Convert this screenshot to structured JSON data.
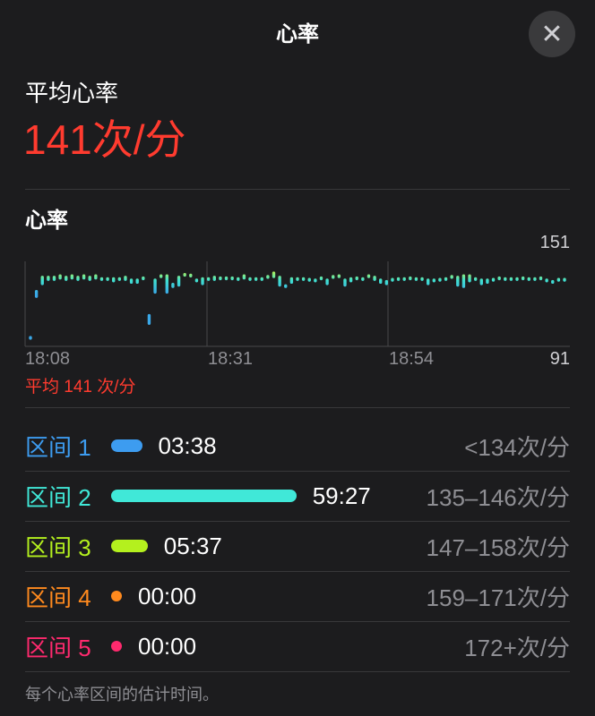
{
  "header": {
    "title": "心率",
    "close_icon": "xmark-icon"
  },
  "summary": {
    "label": "平均心率",
    "value": "141次/分"
  },
  "section_title": "心率",
  "chart_data": {
    "type": "range-bar",
    "ylim": [
      91,
      151
    ],
    "y_tick_labels": [
      "151",
      "91"
    ],
    "x_tick_labels": [
      "18:08",
      "18:31",
      "18:54"
    ],
    "average_label": "平均 141 次/分",
    "grid": "vertical lines at x ticks",
    "colors": {
      "low": "#3aa8e8",
      "high": "#b4f050"
    },
    "ranges": [
      [
        96,
        98
      ],
      [
        125,
        131
      ],
      [
        134,
        141
      ],
      [
        137,
        141
      ],
      [
        137,
        141
      ],
      [
        138,
        142
      ],
      [
        137,
        141
      ],
      [
        138,
        142
      ],
      [
        137,
        141
      ],
      [
        138,
        142
      ],
      [
        137,
        141
      ],
      [
        138,
        142
      ],
      [
        137,
        140
      ],
      [
        137,
        140
      ],
      [
        136,
        140
      ],
      [
        137,
        140
      ],
      [
        137,
        141
      ],
      [
        135,
        139
      ],
      [
        135,
        139
      ],
      [
        138,
        140
      ],
      [
        106,
        114
      ],
      [
        128,
        139
      ],
      [
        139,
        142
      ],
      [
        128,
        142
      ],
      [
        132,
        136
      ],
      [
        133,
        141
      ],
      [
        140,
        143
      ],
      [
        140,
        142
      ],
      [
        136,
        139
      ],
      [
        134,
        140
      ],
      [
        137,
        140
      ],
      [
        137,
        141
      ],
      [
        138,
        140
      ],
      [
        138,
        140
      ],
      [
        138,
        140
      ],
      [
        137,
        140
      ],
      [
        138,
        142
      ],
      [
        137,
        140
      ],
      [
        137,
        140
      ],
      [
        137,
        140
      ],
      [
        139,
        141
      ],
      [
        139,
        144
      ],
      [
        133,
        141
      ],
      [
        132,
        135
      ],
      [
        135,
        140
      ],
      [
        137,
        140
      ],
      [
        137,
        140
      ],
      [
        137,
        139
      ],
      [
        136,
        139
      ],
      [
        138,
        140
      ],
      [
        134,
        139
      ],
      [
        139,
        141
      ],
      [
        139,
        142
      ],
      [
        133,
        139
      ],
      [
        136,
        140
      ],
      [
        138,
        140
      ],
      [
        137,
        140
      ],
      [
        139,
        142
      ],
      [
        137,
        141
      ],
      [
        135,
        139
      ],
      [
        134,
        138
      ],
      [
        137,
        139
      ],
      [
        137,
        140
      ],
      [
        137,
        140
      ],
      [
        138,
        140
      ],
      [
        137,
        140
      ],
      [
        137,
        140
      ],
      [
        134,
        139
      ],
      [
        136,
        139
      ],
      [
        137,
        139
      ],
      [
        137,
        140
      ],
      [
        139,
        141
      ],
      [
        133,
        141
      ],
      [
        132,
        142
      ],
      [
        136,
        142
      ],
      [
        137,
        140
      ],
      [
        134,
        139
      ],
      [
        135,
        139
      ],
      [
        137,
        139
      ],
      [
        138,
        140
      ],
      [
        137,
        140
      ],
      [
        137,
        140
      ],
      [
        137,
        140
      ],
      [
        138,
        140
      ],
      [
        137,
        140
      ],
      [
        137,
        140
      ],
      [
        138,
        140
      ],
      [
        136,
        139
      ],
      [
        135,
        138
      ],
      [
        137,
        139
      ],
      [
        137,
        139
      ]
    ]
  },
  "zones": [
    {
      "name": "区间 1",
      "time": "03:38",
      "range": "<134次/分",
      "color": "#3d9cf0",
      "fraction": 0.05
    },
    {
      "name": "区间 2",
      "time": "59:27",
      "range": "135–146次/分",
      "color": "#40e8d8",
      "fraction": 0.87
    },
    {
      "name": "区间 3",
      "time": "05:37",
      "range": "147–158次/分",
      "color": "#b4f01e",
      "fraction": 0.08
    },
    {
      "name": "区间 4",
      "time": "00:00",
      "range": "159–171次/分",
      "color": "#ff8a1e",
      "fraction": 0
    },
    {
      "name": "区间 5",
      "time": "00:00",
      "range": "172+次/分",
      "color": "#ff2a6e",
      "fraction": 0
    }
  ],
  "footnote": "每个心率区间的估计时间。"
}
